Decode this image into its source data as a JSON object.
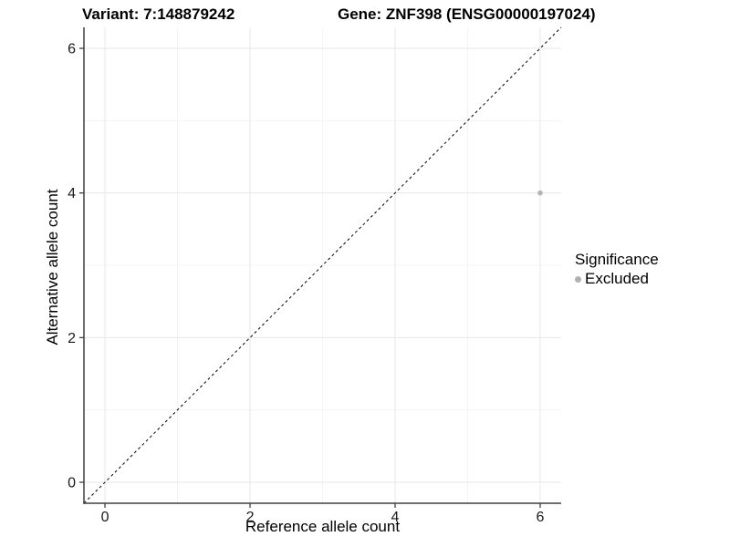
{
  "titles": {
    "variant": "Variant: 7:148879242",
    "gene": "Gene: ZNF398 (ENSG00000197024)"
  },
  "chart_data": {
    "type": "scatter",
    "xlabel": "Reference allele count",
    "ylabel": "Alternative allele count",
    "xlim": [
      -0.29,
      6.29
    ],
    "ylim": [
      -0.29,
      6.29
    ],
    "x_ticks": [
      0,
      2,
      4,
      6
    ],
    "y_ticks": [
      0,
      2,
      4,
      6
    ],
    "x_minor_ticks": [
      1,
      3,
      5
    ],
    "y_minor_ticks": [
      1,
      3,
      5
    ],
    "grid": true,
    "points": [
      {
        "x": 6,
        "y": 4,
        "series": "Excluded",
        "color": "#b3b3b3",
        "radius": 2.8
      }
    ],
    "reference_line": {
      "type": "identity",
      "style": "dashed",
      "color": "#000000"
    },
    "legend": {
      "title": "Significance",
      "position": "right",
      "items": [
        {
          "label": "Excluded",
          "color": "#b0b0b0"
        }
      ]
    },
    "colors": {
      "grid_major": "#e7e7e7",
      "grid_minor": "#f2f2f2",
      "axis": "#404040",
      "tick_text": "#1a1a1a"
    }
  }
}
